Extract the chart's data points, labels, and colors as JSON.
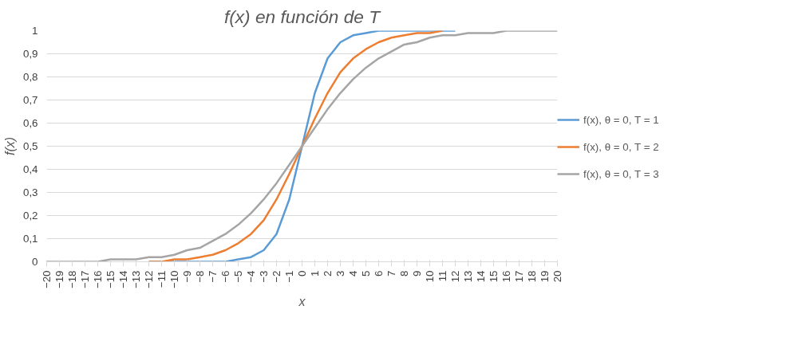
{
  "chart_data": {
    "type": "line",
    "title": "f(x) en función de T",
    "xlabel": "x",
    "ylabel": "f(x)",
    "x": [
      -20,
      -19,
      -18,
      -17,
      -16,
      -15,
      -14,
      -13,
      -12,
      -11,
      -10,
      -9,
      -8,
      -7,
      -6,
      -5,
      -4,
      -3,
      -2,
      -1,
      0,
      1,
      2,
      3,
      4,
      5,
      6,
      7,
      8,
      9,
      10,
      11,
      12,
      13,
      14,
      15,
      16,
      17,
      18,
      19,
      20
    ],
    "series": [
      {
        "name": "f(x), θ = 0, T = 1",
        "color": "#5b9bd5",
        "values": [
          null,
          null,
          null,
          null,
          null,
          null,
          null,
          null,
          0,
          0,
          0,
          0,
          0,
          0,
          0,
          0.01,
          0.02,
          0.05,
          0.12,
          0.27,
          0.5,
          0.73,
          0.88,
          0.95,
          0.98,
          0.99,
          1,
          1,
          1,
          1,
          1,
          1,
          1,
          null,
          null,
          null,
          null,
          null,
          null,
          null,
          null
        ]
      },
      {
        "name": "f(x), θ = 0, T = 2",
        "color": "#ed7d31",
        "values": [
          null,
          null,
          null,
          null,
          null,
          null,
          null,
          null,
          0,
          0,
          0.01,
          0.01,
          0.02,
          0.03,
          0.05,
          0.08,
          0.12,
          0.18,
          0.27,
          0.38,
          0.5,
          0.62,
          0.73,
          0.82,
          0.88,
          0.92,
          0.95,
          0.97,
          0.98,
          0.99,
          0.99,
          1,
          null,
          null,
          null,
          null,
          null,
          null,
          null,
          null,
          null
        ]
      },
      {
        "name": "f(x), θ = 0, T = 3",
        "color": "#a5a5a5",
        "values": [
          0,
          0,
          0,
          0,
          0,
          0.01,
          0.01,
          0.01,
          0.02,
          0.02,
          0.03,
          0.05,
          0.06,
          0.09,
          0.12,
          0.16,
          0.21,
          0.27,
          0.34,
          0.42,
          0.5,
          0.58,
          0.66,
          0.73,
          0.79,
          0.84,
          0.88,
          0.91,
          0.94,
          0.95,
          0.97,
          0.98,
          0.98,
          0.99,
          0.99,
          0.99,
          1,
          1,
          1,
          1,
          1
        ]
      }
    ],
    "xlim": [
      -20,
      20
    ],
    "xticks": [
      -20,
      -19,
      -18,
      -17,
      -16,
      -15,
      -14,
      -13,
      -12,
      -11,
      -10,
      -9,
      -8,
      -7,
      -6,
      -5,
      -4,
      -3,
      -2,
      -1,
      0,
      1,
      2,
      3,
      4,
      5,
      6,
      7,
      8,
      9,
      10,
      11,
      12,
      13,
      14,
      15,
      16,
      17,
      18,
      19,
      20
    ],
    "ylim": [
      0,
      1
    ],
    "yticks": [
      0,
      {
        "value": 0.1,
        "label": "0,1"
      },
      {
        "value": 0.2,
        "label": "0,2"
      },
      {
        "value": 0.3,
        "label": "0,3"
      },
      {
        "value": 0.4,
        "label": "0,4"
      },
      {
        "value": 0.5,
        "label": "0,5"
      },
      {
        "value": 0.6,
        "label": "0,6"
      },
      {
        "value": 0.7,
        "label": "0,7"
      },
      {
        "value": 0.8,
        "label": "0,8"
      },
      {
        "value": 0.9,
        "label": "0,9"
      },
      1
    ],
    "grid": "y",
    "legend": "right",
    "marker": "none",
    "line_style": "solid"
  }
}
